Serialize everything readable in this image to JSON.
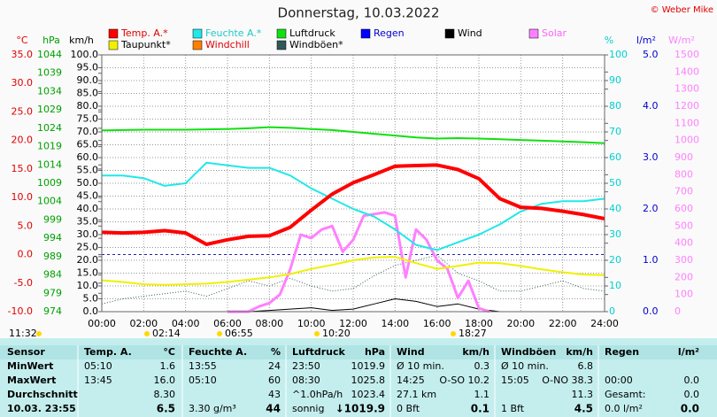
{
  "chart_data": {
    "type": "line",
    "title": "Donnerstag, 10.03.2022",
    "credit": "© Weber Mike",
    "xlim": [
      0,
      24
    ],
    "xticks": [
      {
        "value": 0,
        "label": "00:00"
      },
      {
        "value": 2,
        "label": "02:00"
      },
      {
        "value": 4,
        "label": "04:00"
      },
      {
        "value": 6,
        "label": "06:00"
      },
      {
        "value": 8,
        "label": "08:00"
      },
      {
        "value": 10,
        "label": "10:00"
      },
      {
        "value": 12,
        "label": "12:00"
      },
      {
        "value": 14,
        "label": "14:00"
      },
      {
        "value": 16,
        "label": "16:00"
      },
      {
        "value": 18,
        "label": "18:00"
      },
      {
        "value": 20,
        "label": "20:00"
      },
      {
        "value": 22,
        "label": "22:00"
      },
      {
        "value": 24,
        "label": "24:00"
      }
    ],
    "x": [
      0,
      1,
      2,
      3,
      4,
      5,
      6,
      7,
      8,
      9,
      10,
      11,
      12,
      13,
      14,
      15,
      16,
      17,
      18,
      19,
      20,
      21,
      22,
      23,
      24
    ],
    "axes": [
      {
        "label": "°C",
        "color": "#e00000",
        "lim": [
          -10,
          35
        ],
        "ticks": [
          {
            "value": -10,
            "label": "-10.0"
          },
          {
            "value": -5,
            "label": "-5.0"
          },
          {
            "value": 0,
            "label": "0.0"
          },
          {
            "value": 5,
            "label": "5.0"
          },
          {
            "value": 10,
            "label": "10.0"
          },
          {
            "value": 15,
            "label": "15.0"
          },
          {
            "value": 20,
            "label": "20.0"
          },
          {
            "value": 25,
            "label": "25.0"
          },
          {
            "value": 30,
            "label": "30.0"
          },
          {
            "value": 35,
            "label": "35.0"
          }
        ]
      },
      {
        "label": "hPa",
        "color": "#00a000",
        "lim": [
          974,
          1044
        ],
        "ticks": [
          974,
          979,
          984,
          989,
          994,
          999,
          1004,
          1009,
          1014,
          1019,
          1024,
          1029,
          1034,
          1039,
          1044
        ]
      },
      {
        "label": "km/h",
        "color": "#000000",
        "lim": [
          0,
          100
        ],
        "grid": true,
        "ticks": [
          {
            "value": 0,
            "label": "0.0"
          },
          {
            "value": 5,
            "label": "5.0"
          },
          {
            "value": 10,
            "label": "10.0"
          },
          {
            "value": 15,
            "label": "15.0"
          },
          {
            "value": 20,
            "label": "20.0"
          },
          {
            "value": 25,
            "label": "25.0"
          },
          {
            "value": 30,
            "label": "30.0"
          },
          {
            "value": 35,
            "label": "35.0"
          },
          {
            "value": 40,
            "label": "40.0"
          },
          {
            "value": 45,
            "label": "45.0"
          },
          {
            "value": 50,
            "label": "50.0"
          },
          {
            "value": 55,
            "label": "55.0"
          },
          {
            "value": 60,
            "label": "60.0"
          },
          {
            "value": 65,
            "label": "65.0"
          },
          {
            "value": 70,
            "label": "70.0"
          },
          {
            "value": 75,
            "label": "75.0"
          },
          {
            "value": 80,
            "label": "80.0"
          },
          {
            "value": 85,
            "label": "85.0"
          },
          {
            "value": 90,
            "label": "90.0"
          },
          {
            "value": 95,
            "label": "95.0"
          },
          {
            "value": 100,
            "label": "100.0"
          }
        ]
      },
      {
        "label": "%",
        "color": "#00d0d0",
        "lim": [
          0,
          100
        ],
        "ticks": [
          0,
          10,
          20,
          30,
          40,
          50,
          60,
          70,
          80,
          90,
          100
        ]
      },
      {
        "label": "l/m²",
        "color": "#0000d0",
        "lim": [
          0,
          5
        ],
        "ticks": [
          {
            "value": 0,
            "label": "0.0"
          },
          {
            "value": 1,
            "label": "1.0"
          },
          {
            "value": 2,
            "label": "2.0"
          },
          {
            "value": 3,
            "label": "3.0"
          },
          {
            "value": 4,
            "label": "4.0"
          },
          {
            "value": 5,
            "label": "5.0"
          }
        ]
      },
      {
        "label": "W/m²",
        "color": "#ff80ff",
        "lim": [
          0,
          1500
        ],
        "ticks": [
          0,
          100,
          200,
          300,
          400,
          500,
          600,
          700,
          800,
          900,
          1000,
          1100,
          1200,
          1300,
          1400,
          1500
        ]
      }
    ],
    "series": [
      {
        "name": "Temp. A.*",
        "color": "#ff0000",
        "axis": 0,
        "width": 4,
        "values": [
          3.9,
          3.8,
          3.9,
          4.2,
          3.8,
          1.8,
          2.6,
          3.2,
          3.3,
          4.8,
          7.8,
          10.6,
          12.6,
          14,
          15.5,
          15.6,
          15.7,
          14.9,
          13.3,
          9.8,
          8.3,
          8.1,
          7.6,
          7.0,
          6.3
        ]
      },
      {
        "name": "Feuchte A.*",
        "color": "#20e8e8",
        "axis": 3,
        "width": 2,
        "values": [
          53,
          53,
          52,
          49,
          50,
          58,
          57,
          56,
          56,
          53,
          48,
          44,
          40,
          37,
          32,
          26,
          24,
          27,
          30,
          34,
          39,
          42,
          43,
          43,
          44
        ]
      },
      {
        "name": "Luftdruck",
        "color": "#10e010",
        "axis": 1,
        "width": 2,
        "values": [
          1023.4,
          1023.5,
          1023.6,
          1023.6,
          1023.6,
          1023.7,
          1023.8,
          1024,
          1024.3,
          1024.1,
          1023.8,
          1023.5,
          1023.0,
          1022.5,
          1022.0,
          1021.5,
          1021.2,
          1021.3,
          1021.2,
          1021.0,
          1020.8,
          1020.6,
          1020.4,
          1020.2,
          1019.9
        ]
      },
      {
        "name": "Regen",
        "color": "#0000ff",
        "axis": 4,
        "width": 1,
        "values": [
          0,
          0,
          0,
          0,
          0,
          0,
          0,
          0,
          0,
          0,
          0,
          0,
          0,
          0,
          0,
          0,
          0,
          0,
          0,
          0,
          0,
          0,
          0,
          0,
          0
        ]
      },
      {
        "name": "Wind",
        "color": "#000000",
        "axis": 2,
        "width": 1,
        "values": [
          0,
          0,
          0,
          0,
          0,
          0,
          0,
          0,
          0.5,
          1,
          1.5,
          0.5,
          1,
          3,
          5,
          4,
          2,
          3,
          1,
          0,
          0,
          0,
          0,
          0,
          0
        ]
      },
      {
        "name": "Solar",
        "color": "#ff80ff",
        "axis": 5,
        "width": 3,
        "x": [
          6,
          7,
          7.5,
          8,
          8.5,
          9,
          9.5,
          10,
          10.5,
          11,
          11.5,
          12,
          12.5,
          13,
          13.5,
          14,
          14.5,
          15,
          15.5,
          16,
          16.5,
          17,
          17.5,
          18,
          18.5
        ],
        "values": [
          0,
          0,
          30,
          50,
          100,
          250,
          450,
          430,
          480,
          500,
          350,
          420,
          560,
          570,
          580,
          560,
          200,
          480,
          420,
          300,
          250,
          80,
          180,
          20,
          0
        ]
      },
      {
        "name": "Taupunkt*",
        "color": "#f0f000",
        "axis": 0,
        "width": 2,
        "values": [
          -4.5,
          -4.8,
          -5.2,
          -5.3,
          -5.2,
          -5.1,
          -4.8,
          -4.4,
          -4,
          -3.4,
          -2.5,
          -1.8,
          -1,
          -0.5,
          -0.4,
          -1.5,
          -2.5,
          -2,
          -1.4,
          -1.5,
          -2,
          -2.6,
          -3.1,
          -3.5,
          -3.6
        ]
      },
      {
        "name": "Windchill",
        "color": "#ff8000",
        "axis": 0,
        "width": 1,
        "values": [
          3.9,
          3.8,
          3.9,
          4.2,
          3.8,
          1.8,
          2.6,
          3.2,
          3.3,
          4.8,
          7.6,
          10.4,
          12.8,
          14.2,
          15.2,
          15.6,
          15.8,
          15,
          13.4,
          9.8,
          8.3,
          8.1,
          7.6,
          7.0,
          6.3
        ]
      },
      {
        "name": "Windböen*",
        "color": "#305858",
        "axis": 2,
        "width": 1,
        "dash": true,
        "values": [
          3,
          5,
          6,
          7,
          8,
          6,
          9,
          12,
          10,
          13,
          10,
          8,
          9,
          14,
          18,
          20,
          22,
          15,
          12,
          8,
          8,
          10,
          12,
          9,
          8
        ]
      }
    ],
    "markers": [
      "11:32",
      "02:14",
      "06:55",
      "10:20",
      "18:27"
    ]
  },
  "table": {
    "header": [
      "Sensor",
      "Temp. A.",
      "°C",
      "Feuchte A.",
      "%",
      "Luftdruck",
      "hPa",
      "Wind",
      "km/h",
      "Windböen",
      "km/h",
      "Regen",
      "l/m²"
    ],
    "rows": [
      [
        "MinWert",
        "05:10",
        "1.6",
        "13:55",
        "24",
        "23:50",
        "1019.9",
        "Ø 10 min.",
        "0.3",
        "Ø 10 min.",
        "6.8",
        null,
        null
      ],
      [
        "MaxWert",
        "13:45",
        "16.0",
        "05:10",
        "60",
        "08:30",
        "1025.8",
        "14:25",
        "O-SO 10.2",
        "15:05",
        "O-NO 38.3",
        "00:00",
        "0.0"
      ],
      [
        "Durchschnitt",
        null,
        "8.30",
        null,
        "43",
        "^1.0hPa/h",
        "1023.4",
        "27.1 km",
        "1.1",
        null,
        "11.3",
        "Gesamt:",
        "0.0"
      ],
      [
        "10.03. 23:55",
        null,
        "6.5",
        "3.30 g/m³",
        "44",
        "sonnig",
        "↓1019.9",
        "0 Bft",
        "0.1",
        "1 Bft",
        "4.5",
        "0.0 l/m²",
        "0.0"
      ]
    ]
  }
}
